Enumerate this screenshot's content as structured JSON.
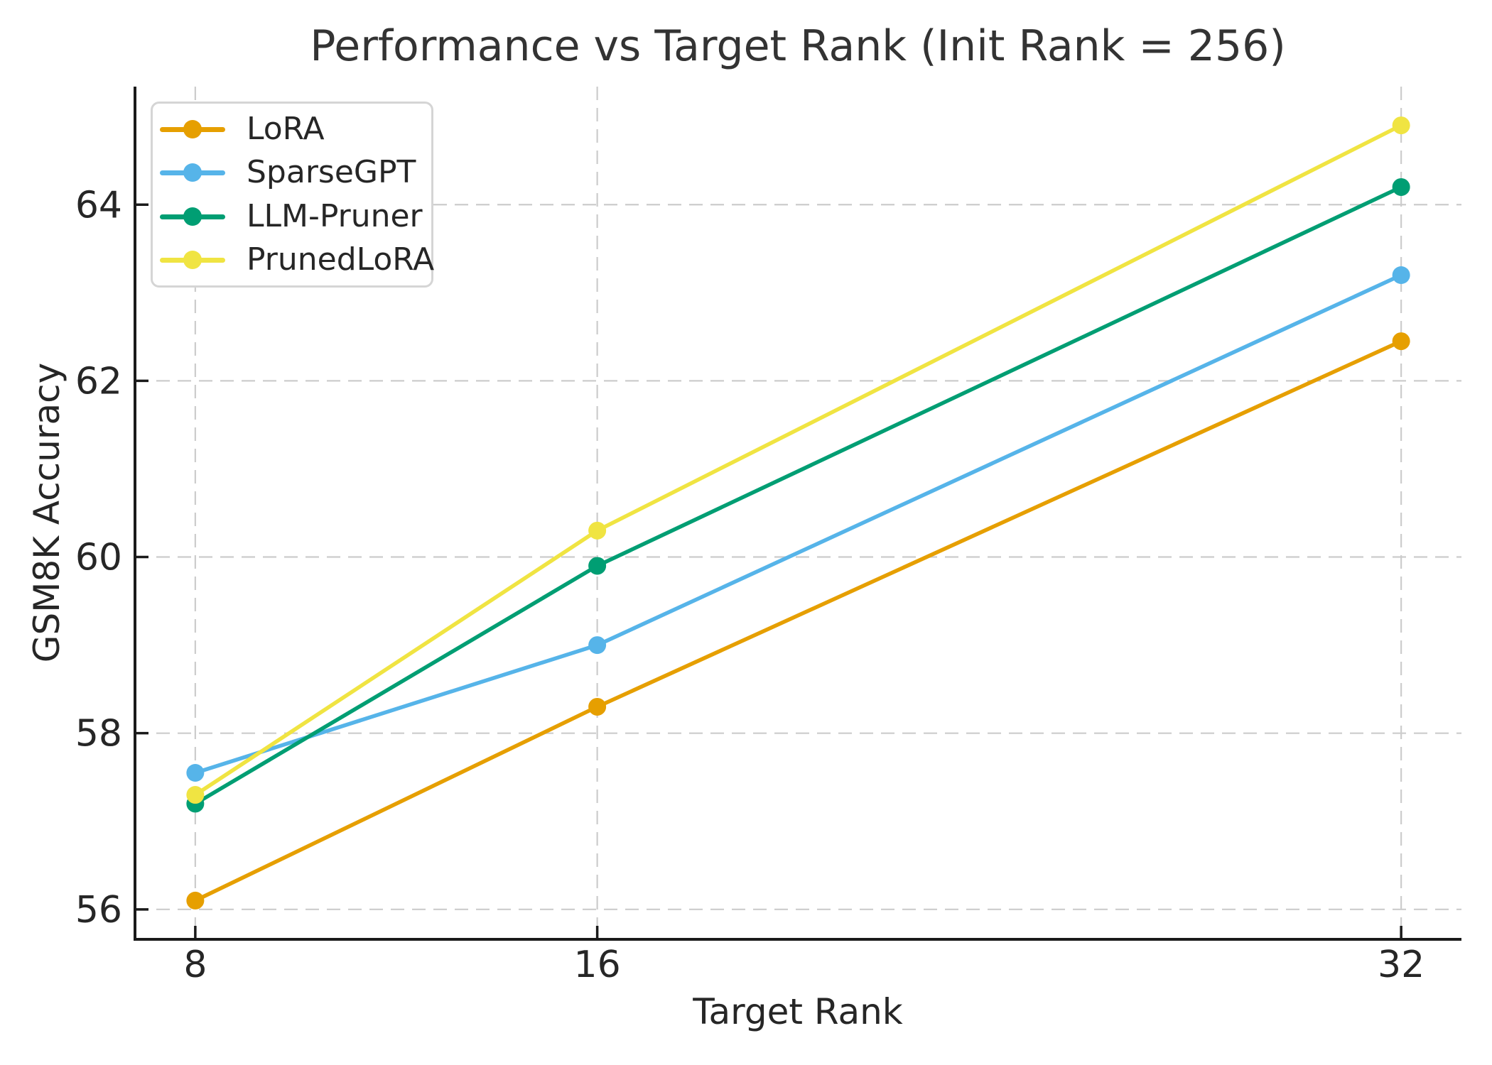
{
  "chart_data": {
    "type": "line",
    "title": "Performance vs Target Rank (Init Rank = 256)",
    "xlabel": "Target Rank",
    "ylabel": "GSM8K Accuracy",
    "x": [
      8,
      16,
      32
    ],
    "x_tick_labels": [
      "8",
      "16",
      "32"
    ],
    "y_ticks": [
      56,
      58,
      60,
      62,
      64
    ],
    "xlim": [
      6.8,
      33.2
    ],
    "ylim": [
      55.66,
      65.34
    ],
    "grid": true,
    "grid_style": "dashed",
    "legend_position": "upper left",
    "series": [
      {
        "name": "LoRA",
        "color": "#E69F00",
        "values": [
          56.1,
          58.3,
          62.45
        ]
      },
      {
        "name": "SparseGPT",
        "color": "#56B4E9",
        "values": [
          57.55,
          59.0,
          63.2
        ]
      },
      {
        "name": "LLM-Pruner",
        "color": "#009E73",
        "values": [
          57.2,
          59.9,
          64.2
        ]
      },
      {
        "name": "PrunedLoRA",
        "color": "#F0E442",
        "values": [
          57.3,
          60.3,
          64.9
        ]
      }
    ]
  },
  "colors": {
    "grid": "#cccccc",
    "spine": "#1a1a1a",
    "tick_text": "#262626",
    "title_text": "#333333",
    "legend_border": "#d5d5d5",
    "background": "#ffffff"
  }
}
